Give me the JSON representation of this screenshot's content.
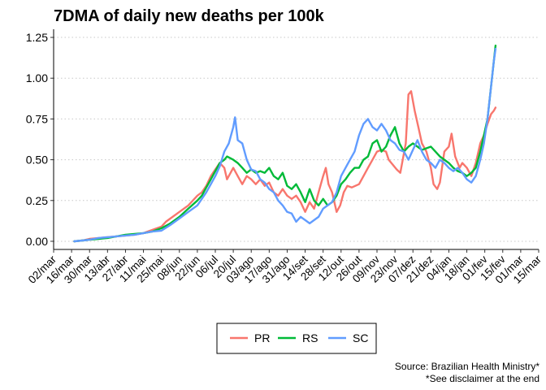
{
  "chart_data": {
    "type": "line",
    "title": "7DMA of daily new deaths per 100k",
    "xlabel": "",
    "ylabel": "",
    "x_tick_labels": [
      "02/mar",
      "16/mar",
      "30/mar",
      "13/abr",
      "27/abr",
      "11/mai",
      "25/mai",
      "08/jun",
      "22/jun",
      "06/jul",
      "20/jul",
      "03/ago",
      "17/ago",
      "31/ago",
      "14/set",
      "28/set",
      "12/out",
      "26/out",
      "09/nov",
      "23/nov",
      "07/dez",
      "21/dez",
      "04/jan",
      "18/jan",
      "01/fev",
      "15/fev",
      "01/mar",
      "15/mar"
    ],
    "y_ticks": [
      0.0,
      0.25,
      0.5,
      0.75,
      1.0,
      1.25
    ],
    "y_tick_labels": [
      "0.00",
      "0.25",
      "0.50",
      "0.75",
      "1.00",
      "1.25"
    ],
    "xlim_weeks": [
      0,
      54
    ],
    "ylim": [
      -0.05,
      1.3
    ],
    "grid": "horizontal dotted",
    "legend_position": "bottom",
    "x_unit": "weeks since 02/mar",
    "series": [
      {
        "name": "PR",
        "color": "#F8766D",
        "points": [
          [
            2.3,
            0
          ],
          [
            3.2,
            0.005
          ],
          [
            4,
            0.015
          ],
          [
            5,
            0.02
          ],
          [
            6,
            0.025
          ],
          [
            7,
            0.03
          ],
          [
            8,
            0.035
          ],
          [
            9,
            0.04
          ],
          [
            10,
            0.05
          ],
          [
            11,
            0.07
          ],
          [
            12,
            0.09
          ],
          [
            12.5,
            0.12
          ],
          [
            13,
            0.14
          ],
          [
            14,
            0.18
          ],
          [
            15,
            0.22
          ],
          [
            16,
            0.28
          ],
          [
            16.5,
            0.3
          ],
          [
            17,
            0.34
          ],
          [
            17.5,
            0.4
          ],
          [
            18,
            0.44
          ],
          [
            18.5,
            0.48
          ],
          [
            19,
            0.45
          ],
          [
            19.3,
            0.38
          ],
          [
            20,
            0.45
          ],
          [
            20.5,
            0.4
          ],
          [
            21,
            0.35
          ],
          [
            21.5,
            0.4
          ],
          [
            22,
            0.38
          ],
          [
            22.5,
            0.35
          ],
          [
            23,
            0.38
          ],
          [
            23.5,
            0.34
          ],
          [
            24,
            0.36
          ],
          [
            24.5,
            0.3
          ],
          [
            25,
            0.28
          ],
          [
            25.5,
            0.32
          ],
          [
            26,
            0.28
          ],
          [
            26.5,
            0.26
          ],
          [
            27,
            0.28
          ],
          [
            27.5,
            0.24
          ],
          [
            28,
            0.18
          ],
          [
            28.5,
            0.24
          ],
          [
            29,
            0.2
          ],
          [
            29.5,
            0.3
          ],
          [
            30,
            0.4
          ],
          [
            30.3,
            0.45
          ],
          [
            30.6,
            0.35
          ],
          [
            31,
            0.3
          ],
          [
            31.5,
            0.18
          ],
          [
            31.9,
            0.22
          ],
          [
            32.3,
            0.3
          ],
          [
            32.7,
            0.34
          ],
          [
            33.2,
            0.33
          ],
          [
            34,
            0.35
          ],
          [
            34.5,
            0.4
          ],
          [
            35,
            0.45
          ],
          [
            35.5,
            0.5
          ],
          [
            36,
            0.55
          ],
          [
            36.5,
            0.56
          ],
          [
            37,
            0.55
          ],
          [
            37.3,
            0.5
          ],
          [
            37.6,
            0.48
          ],
          [
            38.2,
            0.44
          ],
          [
            38.6,
            0.42
          ],
          [
            39.2,
            0.6
          ],
          [
            39.5,
            0.9
          ],
          [
            39.8,
            0.92
          ],
          [
            40.2,
            0.8
          ],
          [
            40.6,
            0.7
          ],
          [
            41,
            0.6
          ],
          [
            41.5,
            0.55
          ],
          [
            42,
            0.45
          ],
          [
            42.3,
            0.35
          ],
          [
            42.7,
            0.32
          ],
          [
            43,
            0.36
          ],
          [
            43.5,
            0.55
          ],
          [
            44,
            0.58
          ],
          [
            44.3,
            0.66
          ],
          [
            44.7,
            0.52
          ],
          [
            45.2,
            0.45
          ],
          [
            45.5,
            0.48
          ],
          [
            46,
            0.45
          ],
          [
            46.5,
            0.4
          ],
          [
            47,
            0.48
          ],
          [
            47.5,
            0.6
          ],
          [
            47.9,
            0.65
          ],
          [
            48.3,
            0.72
          ],
          [
            48.7,
            0.78
          ],
          [
            49,
            0.8
          ],
          [
            49.2,
            0.82
          ]
        ]
      },
      {
        "name": "RS",
        "color": "#00BA38",
        "points": [
          [
            2.3,
            0
          ],
          [
            3.2,
            0.005
          ],
          [
            4,
            0.01
          ],
          [
            5,
            0.015
          ],
          [
            6,
            0.02
          ],
          [
            7,
            0.03
          ],
          [
            8,
            0.04
          ],
          [
            9,
            0.045
          ],
          [
            10,
            0.05
          ],
          [
            11,
            0.06
          ],
          [
            12,
            0.08
          ],
          [
            13,
            0.11
          ],
          [
            14,
            0.15
          ],
          [
            15,
            0.2
          ],
          [
            16,
            0.25
          ],
          [
            16.5,
            0.28
          ],
          [
            17,
            0.33
          ],
          [
            17.5,
            0.38
          ],
          [
            18,
            0.43
          ],
          [
            18.5,
            0.48
          ],
          [
            19,
            0.5
          ],
          [
            19.3,
            0.52
          ],
          [
            20,
            0.5
          ],
          [
            20.5,
            0.48
          ],
          [
            21,
            0.45
          ],
          [
            21.5,
            0.42
          ],
          [
            22,
            0.44
          ],
          [
            22.5,
            0.42
          ],
          [
            23,
            0.43
          ],
          [
            23.5,
            0.42
          ],
          [
            24,
            0.45
          ],
          [
            24.5,
            0.4
          ],
          [
            25,
            0.38
          ],
          [
            25.5,
            0.42
          ],
          [
            26,
            0.34
          ],
          [
            26.5,
            0.32
          ],
          [
            27,
            0.35
          ],
          [
            27.5,
            0.3
          ],
          [
            28,
            0.24
          ],
          [
            28.5,
            0.32
          ],
          [
            29,
            0.25
          ],
          [
            29.5,
            0.22
          ],
          [
            30,
            0.26
          ],
          [
            30.5,
            0.22
          ],
          [
            31,
            0.24
          ],
          [
            31.5,
            0.28
          ],
          [
            32,
            0.35
          ],
          [
            32.5,
            0.38
          ],
          [
            33,
            0.42
          ],
          [
            33.5,
            0.45
          ],
          [
            34,
            0.45
          ],
          [
            34.5,
            0.5
          ],
          [
            35,
            0.52
          ],
          [
            35.5,
            0.6
          ],
          [
            36,
            0.62
          ],
          [
            36.5,
            0.55
          ],
          [
            37,
            0.58
          ],
          [
            37.5,
            0.65
          ],
          [
            38,
            0.7
          ],
          [
            38.5,
            0.6
          ],
          [
            39,
            0.55
          ],
          [
            39.5,
            0.58
          ],
          [
            40,
            0.6
          ],
          [
            40.5,
            0.58
          ],
          [
            41,
            0.56
          ],
          [
            41.5,
            0.57
          ],
          [
            42,
            0.58
          ],
          [
            42.5,
            0.55
          ],
          [
            43,
            0.52
          ],
          [
            43.5,
            0.5
          ],
          [
            44,
            0.48
          ],
          [
            44.5,
            0.45
          ],
          [
            45,
            0.43
          ],
          [
            45.5,
            0.42
          ],
          [
            46,
            0.4
          ],
          [
            46.5,
            0.42
          ],
          [
            47,
            0.45
          ],
          [
            47.5,
            0.55
          ],
          [
            47.9,
            0.65
          ],
          [
            48.3,
            0.75
          ],
          [
            48.7,
            0.95
          ],
          [
            49,
            1.1
          ],
          [
            49.2,
            1.2
          ]
        ]
      },
      {
        "name": "SC",
        "color": "#619CFF",
        "points": [
          [
            2.3,
            0
          ],
          [
            3.2,
            0.005
          ],
          [
            4,
            0.01
          ],
          [
            5,
            0.02
          ],
          [
            6,
            0.025
          ],
          [
            7,
            0.03
          ],
          [
            8,
            0.035
          ],
          [
            9,
            0.04
          ],
          [
            10,
            0.05
          ],
          [
            11,
            0.06
          ],
          [
            12,
            0.065
          ],
          [
            13,
            0.1
          ],
          [
            14,
            0.14
          ],
          [
            15,
            0.18
          ],
          [
            16,
            0.22
          ],
          [
            16.5,
            0.26
          ],
          [
            17,
            0.3
          ],
          [
            17.5,
            0.35
          ],
          [
            18,
            0.4
          ],
          [
            18.5,
            0.46
          ],
          [
            19,
            0.55
          ],
          [
            19.5,
            0.6
          ],
          [
            20,
            0.7
          ],
          [
            20.2,
            0.76
          ],
          [
            20.5,
            0.62
          ],
          [
            21,
            0.6
          ],
          [
            21.5,
            0.5
          ],
          [
            22,
            0.44
          ],
          [
            22.5,
            0.43
          ],
          [
            23,
            0.38
          ],
          [
            23.5,
            0.36
          ],
          [
            24,
            0.32
          ],
          [
            24.5,
            0.3
          ],
          [
            25,
            0.25
          ],
          [
            25.5,
            0.22
          ],
          [
            26,
            0.18
          ],
          [
            26.5,
            0.17
          ],
          [
            27,
            0.12
          ],
          [
            27.5,
            0.15
          ],
          [
            28,
            0.13
          ],
          [
            28.5,
            0.11
          ],
          [
            29,
            0.13
          ],
          [
            29.5,
            0.15
          ],
          [
            30,
            0.2
          ],
          [
            30.5,
            0.22
          ],
          [
            31,
            0.24
          ],
          [
            31.5,
            0.3
          ],
          [
            32,
            0.4
          ],
          [
            32.5,
            0.45
          ],
          [
            33,
            0.5
          ],
          [
            33.5,
            0.55
          ],
          [
            34,
            0.65
          ],
          [
            34.5,
            0.72
          ],
          [
            35,
            0.75
          ],
          [
            35.5,
            0.7
          ],
          [
            36,
            0.68
          ],
          [
            36.5,
            0.72
          ],
          [
            37,
            0.68
          ],
          [
            37.5,
            0.62
          ],
          [
            38,
            0.6
          ],
          [
            38.5,
            0.56
          ],
          [
            39,
            0.55
          ],
          [
            39.5,
            0.5
          ],
          [
            40,
            0.56
          ],
          [
            40.5,
            0.62
          ],
          [
            41,
            0.55
          ],
          [
            41.5,
            0.5
          ],
          [
            42,
            0.48
          ],
          [
            42.5,
            0.45
          ],
          [
            43,
            0.5
          ],
          [
            43.5,
            0.48
          ],
          [
            44,
            0.45
          ],
          [
            44.5,
            0.43
          ],
          [
            45,
            0.45
          ],
          [
            45.5,
            0.42
          ],
          [
            46,
            0.38
          ],
          [
            46.5,
            0.36
          ],
          [
            47,
            0.4
          ],
          [
            47.5,
            0.5
          ],
          [
            47.9,
            0.6
          ],
          [
            48.3,
            0.75
          ],
          [
            48.7,
            0.95
          ],
          [
            49,
            1.1
          ],
          [
            49.2,
            1.18
          ]
        ]
      }
    ],
    "caption": [
      "Source: Brazilian Health Ministry*",
      "*See disclaimer at the end"
    ]
  }
}
